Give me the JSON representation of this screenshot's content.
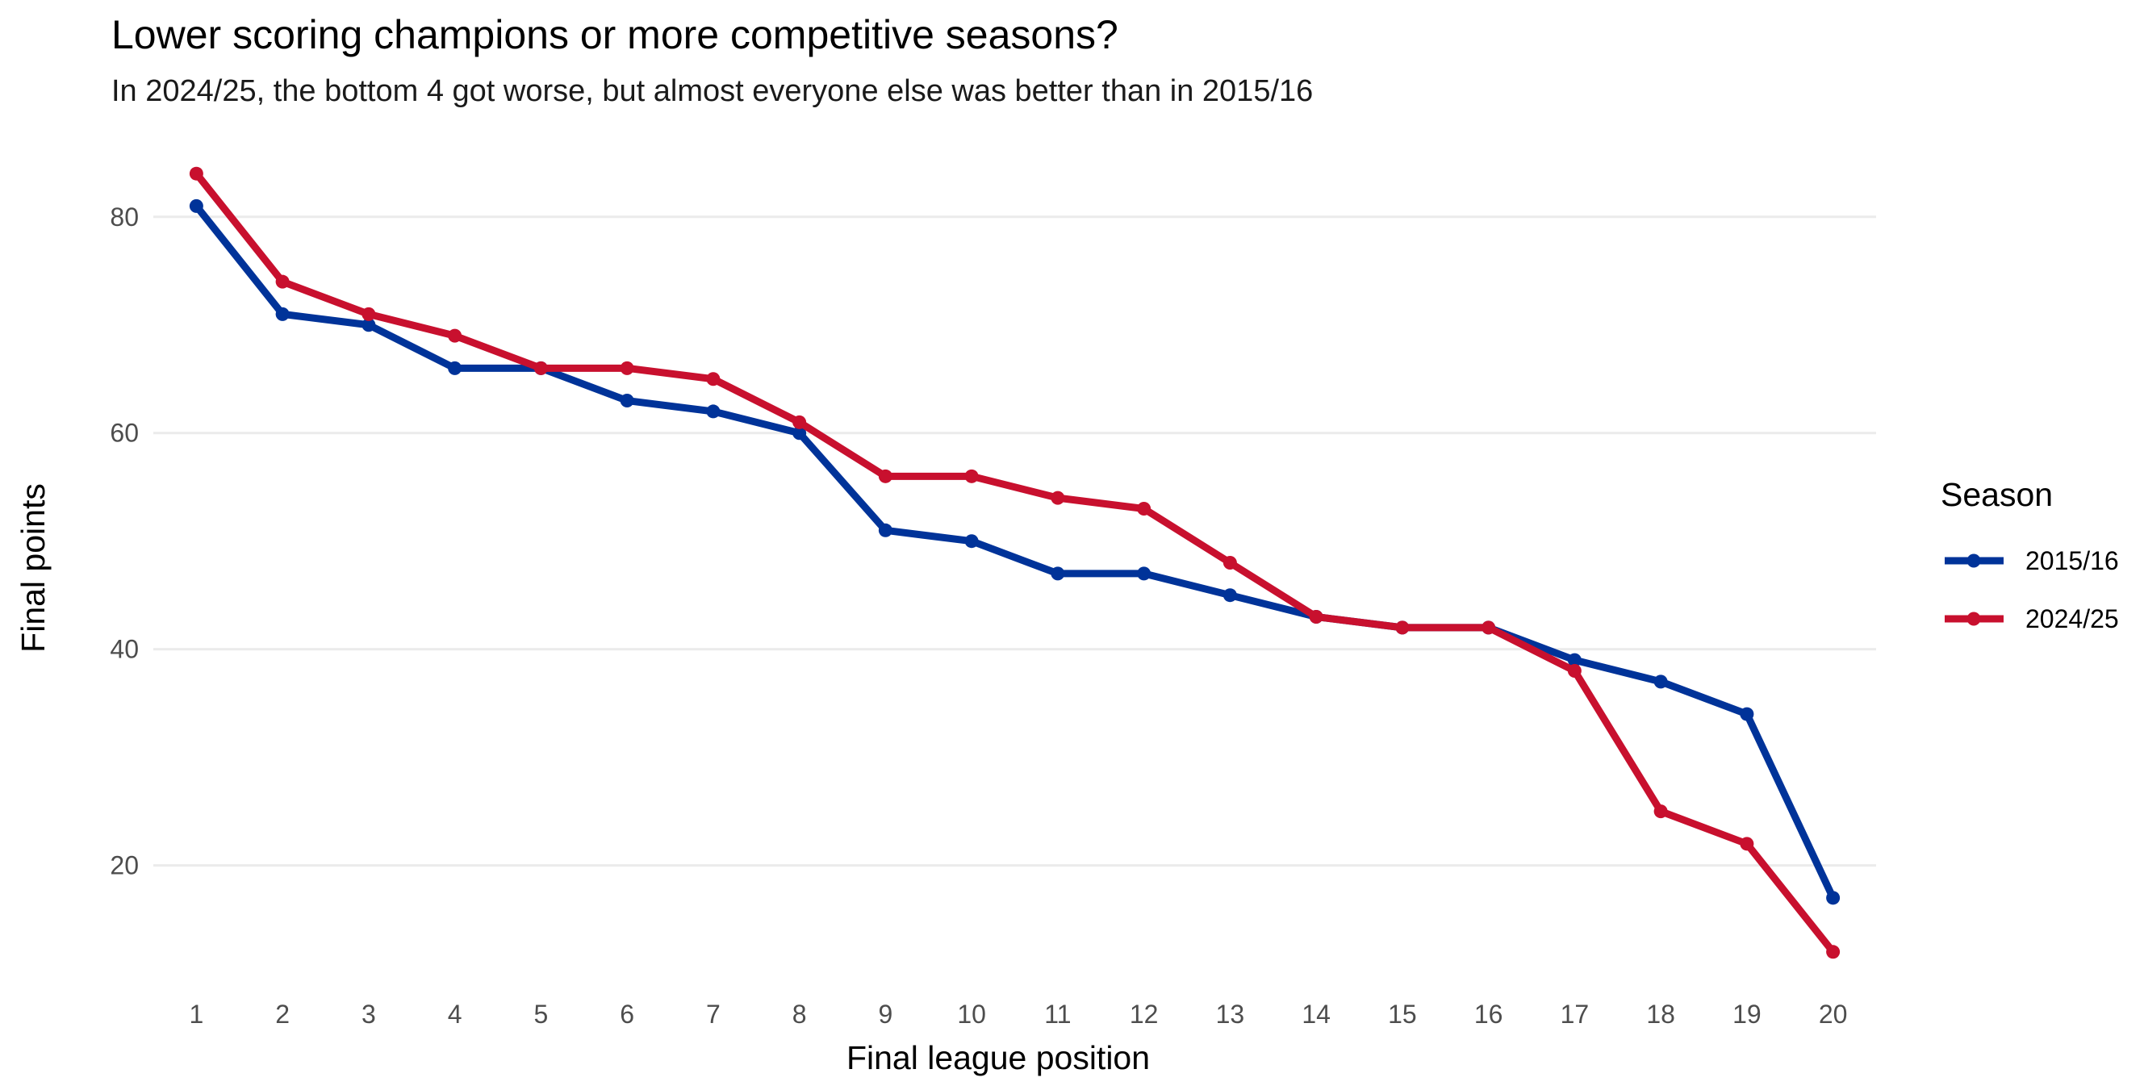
{
  "chart_data": {
    "type": "line",
    "title": "Lower scoring champions or more competitive seasons?",
    "subtitle": "In 2024/25, the bottom 4 got worse, but almost everyone else was better than in 2015/16",
    "xlabel": "Final league position",
    "ylabel": "Final points",
    "x": [
      1,
      2,
      3,
      4,
      5,
      6,
      7,
      8,
      9,
      10,
      11,
      12,
      13,
      14,
      15,
      16,
      17,
      18,
      19,
      20
    ],
    "x_tick_labels": [
      "1",
      "2",
      "3",
      "4",
      "5",
      "6",
      "7",
      "8",
      "9",
      "10",
      "11",
      "12",
      "13",
      "14",
      "15",
      "16",
      "17",
      "18",
      "19",
      "20"
    ],
    "y_ticks": [
      20,
      40,
      60,
      80
    ],
    "y_tick_labels": [
      "20",
      "40",
      "60",
      "80"
    ],
    "xlim": [
      0.5,
      20.5
    ],
    "ylim": [
      9,
      87
    ],
    "grid": "horizontal major",
    "legend": {
      "title": "Season",
      "position": "right"
    },
    "series": [
      {
        "name": "2015/16",
        "color": "#003399",
        "values": [
          81,
          71,
          70,
          66,
          66,
          63,
          62,
          60,
          51,
          50,
          47,
          47,
          45,
          43,
          42,
          42,
          39,
          37,
          34,
          17
        ]
      },
      {
        "name": "2024/25",
        "color": "#C8102E",
        "values": [
          84,
          74,
          71,
          69,
          66,
          66,
          65,
          61,
          56,
          56,
          54,
          53,
          48,
          43,
          42,
          42,
          38,
          25,
          22,
          12
        ]
      }
    ]
  }
}
